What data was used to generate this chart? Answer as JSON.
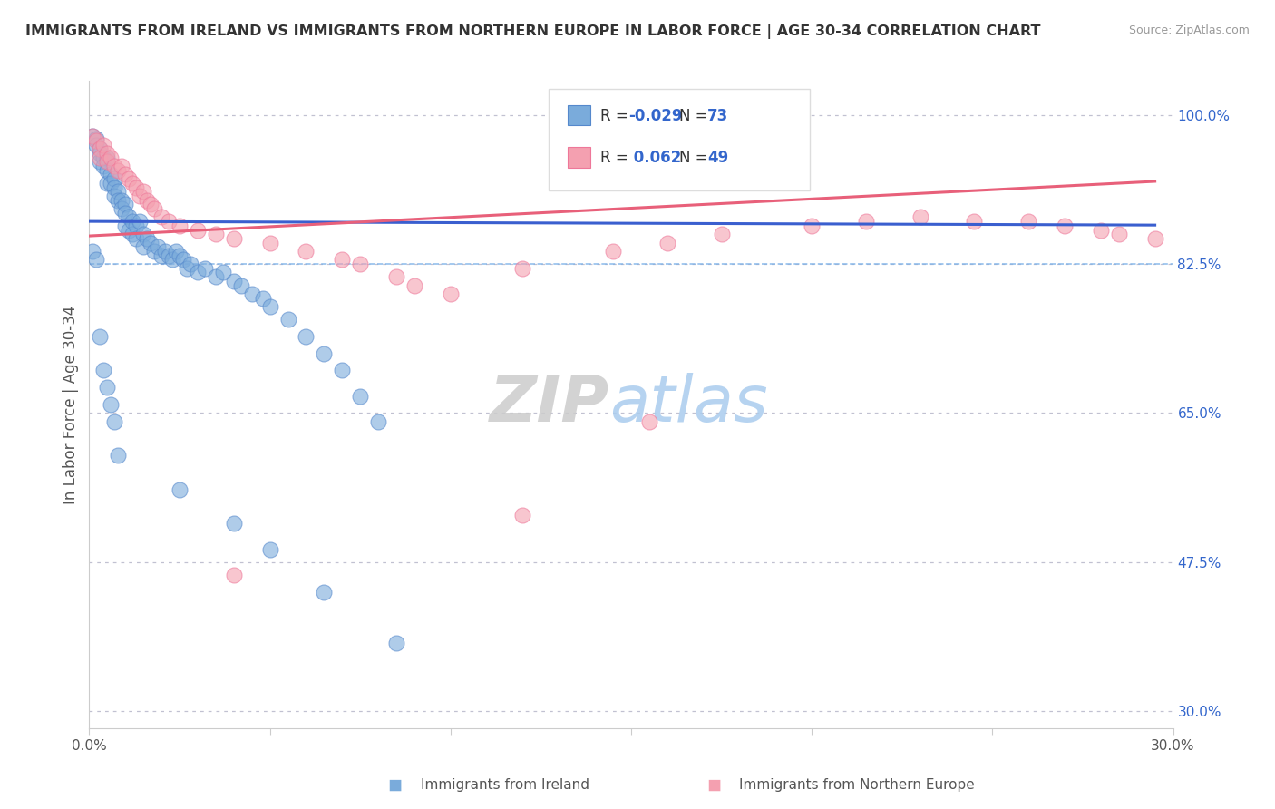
{
  "title": "IMMIGRANTS FROM IRELAND VS IMMIGRANTS FROM NORTHERN EUROPE IN LABOR FORCE | AGE 30-34 CORRELATION CHART",
  "source": "Source: ZipAtlas.com",
  "ylabel": "In Labor Force | Age 30-34",
  "xlim": [
    0.0,
    0.3
  ],
  "ylim": [
    0.28,
    1.04
  ],
  "xticks": [
    0.0,
    0.05,
    0.1,
    0.15,
    0.2,
    0.25,
    0.3
  ],
  "xticklabels": [
    "0.0%",
    "",
    "",
    "",
    "",
    "",
    "30.0%"
  ],
  "yticks_right": [
    1.0,
    0.825,
    0.65,
    0.475,
    0.3
  ],
  "ytick_labels_right": [
    "100.0%",
    "82.5%",
    "65.0%",
    "47.5%",
    "30.0%"
  ],
  "hlines_dotted": [
    1.0,
    0.825,
    0.65,
    0.475,
    0.3
  ],
  "ireland_color": "#7aabdb",
  "ireland_edge_color": "#5588cc",
  "northern_color": "#f4a0b0",
  "northern_edge_color": "#ee7799",
  "ireland_line_color": "#3a5fcf",
  "northern_line_color": "#e8607a",
  "legend_ireland_label": "Immigrants from Ireland",
  "legend_northern_label": "Immigrants from Northern Europe",
  "r_ireland": "-0.029",
  "n_ireland": "73",
  "r_northern": "0.062",
  "n_northern": "49",
  "watermark_zip": "ZIP",
  "watermark_atlas": "atlas",
  "background_color": "#ffffff",
  "ireland_x": [
    0.001,
    0.002,
    0.002,
    0.003,
    0.003,
    0.003,
    0.004,
    0.004,
    0.005,
    0.005,
    0.005,
    0.006,
    0.006,
    0.007,
    0.007,
    0.007,
    0.008,
    0.008,
    0.009,
    0.009,
    0.01,
    0.01,
    0.01,
    0.011,
    0.011,
    0.012,
    0.012,
    0.013,
    0.013,
    0.014,
    0.015,
    0.015,
    0.016,
    0.017,
    0.018,
    0.019,
    0.02,
    0.021,
    0.022,
    0.023,
    0.024,
    0.025,
    0.026,
    0.027,
    0.028,
    0.03,
    0.032,
    0.035,
    0.037,
    0.04,
    0.042,
    0.045,
    0.048,
    0.05,
    0.055,
    0.06,
    0.065,
    0.07,
    0.075,
    0.08,
    0.001,
    0.002,
    0.003,
    0.004,
    0.005,
    0.006,
    0.007,
    0.008,
    0.025,
    0.04,
    0.05,
    0.065,
    0.085
  ],
  "ireland_y": [
    0.975,
    0.972,
    0.965,
    0.96,
    0.955,
    0.945,
    0.95,
    0.94,
    0.95,
    0.935,
    0.92,
    0.93,
    0.92,
    0.925,
    0.915,
    0.905,
    0.91,
    0.9,
    0.9,
    0.89,
    0.895,
    0.885,
    0.87,
    0.88,
    0.865,
    0.875,
    0.86,
    0.87,
    0.855,
    0.875,
    0.86,
    0.845,
    0.855,
    0.85,
    0.84,
    0.845,
    0.835,
    0.84,
    0.835,
    0.83,
    0.84,
    0.835,
    0.83,
    0.82,
    0.825,
    0.815,
    0.82,
    0.81,
    0.815,
    0.805,
    0.8,
    0.79,
    0.785,
    0.775,
    0.76,
    0.74,
    0.72,
    0.7,
    0.67,
    0.64,
    0.84,
    0.83,
    0.74,
    0.7,
    0.68,
    0.66,
    0.64,
    0.6,
    0.56,
    0.52,
    0.49,
    0.44,
    0.38
  ],
  "northern_x": [
    0.001,
    0.002,
    0.003,
    0.003,
    0.004,
    0.005,
    0.005,
    0.006,
    0.007,
    0.008,
    0.009,
    0.01,
    0.011,
    0.012,
    0.013,
    0.014,
    0.015,
    0.016,
    0.017,
    0.018,
    0.02,
    0.022,
    0.025,
    0.03,
    0.035,
    0.04,
    0.05,
    0.06,
    0.07,
    0.075,
    0.085,
    0.09,
    0.1,
    0.12,
    0.145,
    0.16,
    0.175,
    0.2,
    0.215,
    0.23,
    0.245,
    0.26,
    0.27,
    0.28,
    0.285,
    0.295,
    0.155,
    0.12,
    0.04
  ],
  "northern_y": [
    0.975,
    0.97,
    0.96,
    0.95,
    0.965,
    0.955,
    0.945,
    0.95,
    0.94,
    0.935,
    0.94,
    0.93,
    0.925,
    0.92,
    0.915,
    0.905,
    0.91,
    0.9,
    0.895,
    0.89,
    0.88,
    0.875,
    0.87,
    0.865,
    0.86,
    0.855,
    0.85,
    0.84,
    0.83,
    0.825,
    0.81,
    0.8,
    0.79,
    0.82,
    0.84,
    0.85,
    0.86,
    0.87,
    0.875,
    0.88,
    0.875,
    0.875,
    0.87,
    0.865,
    0.86,
    0.855,
    0.64,
    0.53,
    0.46
  ]
}
